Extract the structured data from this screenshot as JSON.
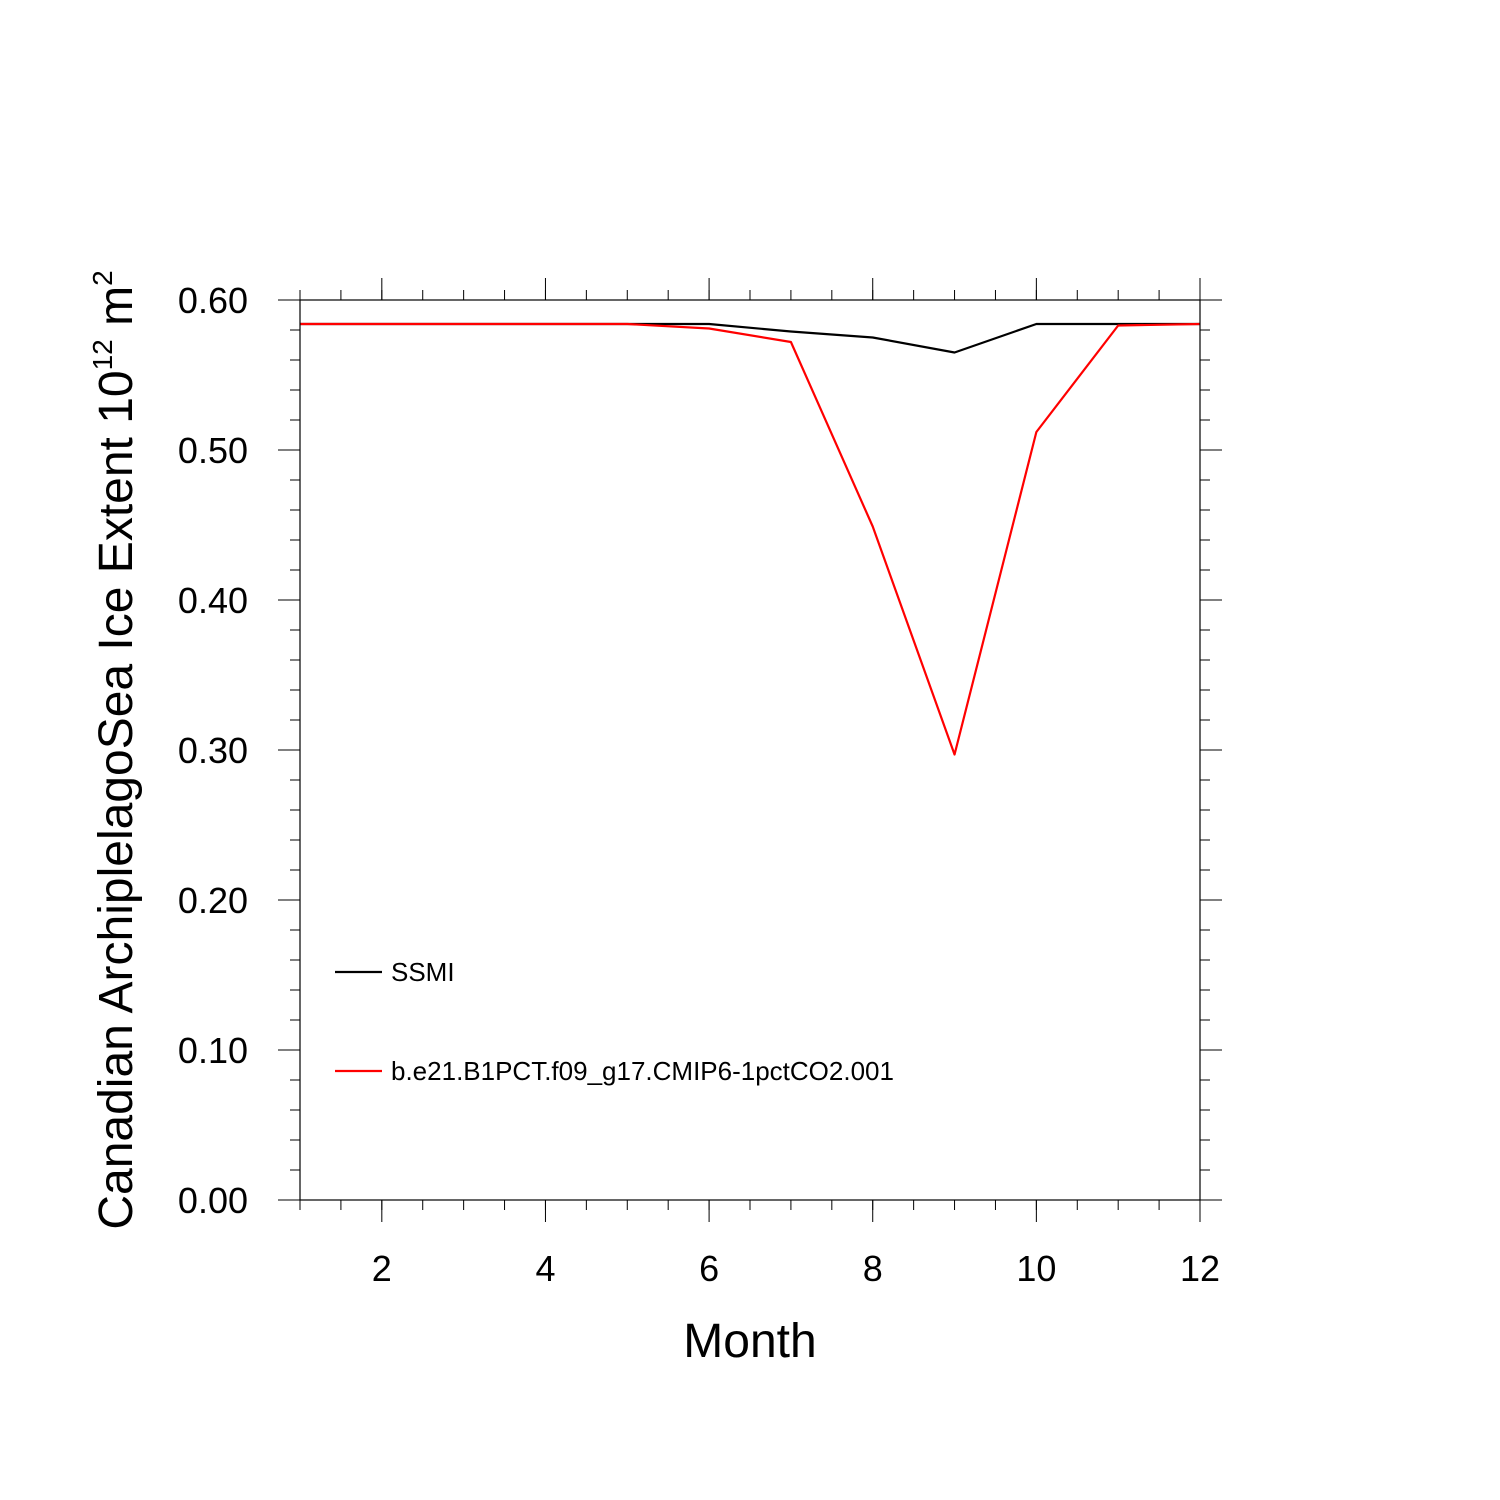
{
  "chart_data": {
    "type": "line",
    "xlabel": "Month",
    "ylabel": {
      "prefix": "Canadian ArchiplelagoSea Ice Extent 10",
      "exponent": "12",
      "unit": " m",
      "unit_exponent": "2"
    },
    "xlim": [
      1,
      12
    ],
    "ylim": [
      0.0,
      0.6
    ],
    "x_ticks": [
      2,
      4,
      6,
      8,
      10,
      12
    ],
    "x_tick_labels": [
      "2",
      "4",
      "6",
      "8",
      "10",
      "12"
    ],
    "y_ticks": [
      0.0,
      0.1,
      0.2,
      0.3,
      0.4,
      0.5,
      0.6
    ],
    "y_tick_labels": [
      "0.00",
      "0.10",
      "0.20",
      "0.30",
      "0.40",
      "0.50",
      "0.60"
    ],
    "x": [
      1,
      2,
      3,
      4,
      5,
      6,
      7,
      8,
      9,
      10,
      11,
      12
    ],
    "grid": false,
    "legend_position": "bottom-left",
    "series": [
      {
        "name": "SSMI",
        "color": "#000000",
        "values": [
          0.584,
          0.584,
          0.584,
          0.584,
          0.584,
          0.584,
          0.579,
          0.575,
          0.565,
          0.584,
          0.584,
          0.584
        ]
      },
      {
        "name": "b.e21.B1PCT.f09_g17.CMIP6-1pctCO2.001",
        "color": "#ff0000",
        "values": [
          0.584,
          0.584,
          0.584,
          0.584,
          0.584,
          0.581,
          0.572,
          0.449,
          0.297,
          0.512,
          0.583,
          0.584
        ]
      }
    ]
  }
}
